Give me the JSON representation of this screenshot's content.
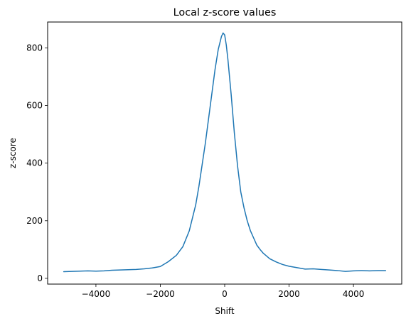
{
  "chart_data": {
    "type": "line",
    "title": "Local z-score values",
    "xlabel": "Shift",
    "ylabel": "z-score",
    "xlim": [
      -5500,
      5500
    ],
    "ylim": [
      -20,
      890
    ],
    "x_ticks": [
      -4000,
      -2000,
      0,
      2000,
      4000
    ],
    "x_tick_labels": [
      "−4000",
      "−2000",
      "0",
      "2000",
      "4000"
    ],
    "y_ticks": [
      0,
      200,
      400,
      600,
      800
    ],
    "y_tick_labels": [
      "0",
      "200",
      "400",
      "600",
      "800"
    ],
    "grid": false,
    "legend": "none",
    "series": [
      {
        "color": "#1f77b4",
        "x": [
          -5000,
          -4750,
          -4500,
          -4250,
          -4000,
          -3750,
          -3500,
          -3250,
          -3000,
          -2750,
          -2500,
          -2250,
          -2000,
          -1750,
          -1500,
          -1300,
          -1100,
          -900,
          -800,
          -700,
          -600,
          -500,
          -400,
          -300,
          -200,
          -100,
          -50,
          0,
          50,
          100,
          200,
          300,
          400,
          500,
          600,
          700,
          800,
          900,
          1000,
          1100,
          1200,
          1400,
          1600,
          1800,
          2000,
          2250,
          2500,
          2750,
          3000,
          3250,
          3500,
          3750,
          4000,
          4250,
          4500,
          4750,
          5000
        ],
        "y": [
          23,
          24,
          25,
          26,
          25,
          26,
          28,
          29,
          30,
          31,
          33,
          36,
          41,
          58,
          80,
          110,
          165,
          255,
          320,
          395,
          470,
          555,
          640,
          725,
          795,
          840,
          852,
          845,
          810,
          760,
          640,
          505,
          390,
          300,
          245,
          200,
          165,
          140,
          115,
          100,
          87,
          68,
          57,
          48,
          42,
          37,
          32,
          33,
          31,
          29,
          27,
          24,
          26,
          27,
          26,
          27,
          27
        ]
      }
    ]
  }
}
